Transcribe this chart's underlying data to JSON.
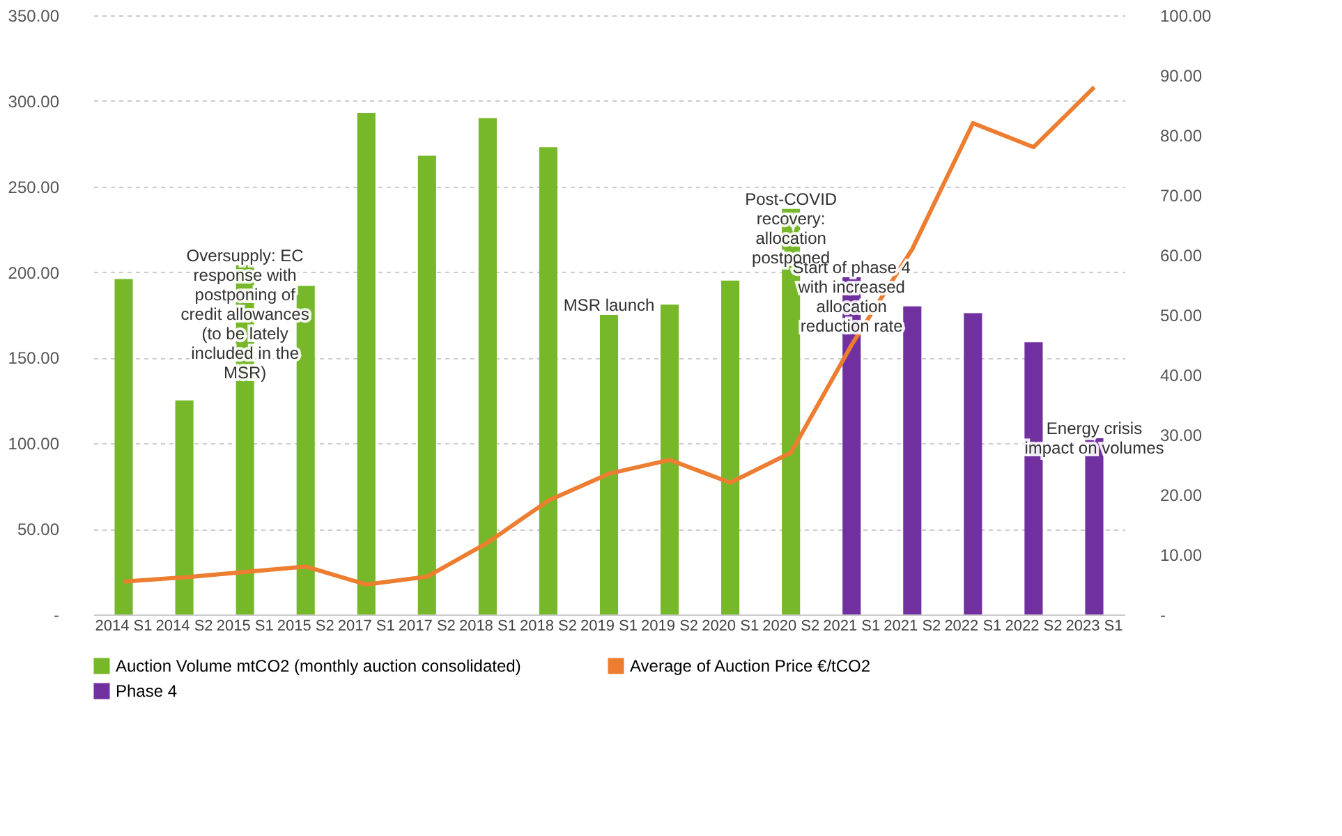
{
  "chart_data": {
    "type": "bar",
    "categories": [
      "2014 S1",
      "2014 S2",
      "2015 S1",
      "2015 S2",
      "2017 S1",
      "2017 S2",
      "2018 S1",
      "2018 S2",
      "2019 S1",
      "2019 S2",
      "2020 S1",
      "2020 S2",
      "2021 S1",
      "2021 S2",
      "2022 S1",
      "2022 S2",
      "2023 S1"
    ],
    "series": [
      {
        "name": "Auction Volume mtCO2 (monthly auction consolidated)",
        "color": "#77b82a",
        "values": [
          196,
          125,
          204,
          192,
          293,
          268,
          290,
          273,
          175,
          181,
          195,
          237,
          null,
          null,
          null,
          null,
          null
        ]
      },
      {
        "name": "Average of Auction Price €/tCO2",
        "color": "#ed7d31",
        "type": "line",
        "axis": "y2",
        "values": [
          5.5,
          6.2,
          7.1,
          8,
          5,
          6.3,
          12,
          19,
          23.5,
          25.8,
          22,
          27,
          45,
          61,
          82,
          78,
          88
        ]
      },
      {
        "name": "Phase 4",
        "color": "#7030a0",
        "values": [
          null,
          null,
          null,
          null,
          null,
          null,
          null,
          null,
          null,
          null,
          null,
          null,
          197,
          180,
          176,
          159,
          103
        ]
      }
    ],
    "ylim": [
      0,
      350
    ],
    "yticks": [
      {
        "value": 0,
        "label": "-"
      },
      {
        "value": 50,
        "label": "50.00"
      },
      {
        "value": 100,
        "label": "100.00"
      },
      {
        "value": 150,
        "label": "150.00"
      },
      {
        "value": 200,
        "label": "200.00"
      },
      {
        "value": 250,
        "label": "250.00"
      },
      {
        "value": 300,
        "label": "300.00"
      },
      {
        "value": 350,
        "label": "350.00"
      }
    ],
    "y2lim": [
      0,
      100
    ],
    "y2ticks": [
      {
        "value": 0,
        "label": "-"
      },
      {
        "value": 10,
        "label": "10.00"
      },
      {
        "value": 20,
        "label": "20.00"
      },
      {
        "value": 30,
        "label": "30.00"
      },
      {
        "value": 40,
        "label": "40.00"
      },
      {
        "value": 50,
        "label": "50.00"
      },
      {
        "value": 60,
        "label": "60.00"
      },
      {
        "value": 70,
        "label": "70.00"
      },
      {
        "value": 80,
        "label": "80.00"
      },
      {
        "value": 90,
        "label": "90.00"
      },
      {
        "value": 100,
        "label": "100.00"
      }
    ],
    "grid": "y",
    "legend": "bottom",
    "annotations": [
      {
        "text": "Oversupply: EC response with postponing of credit allowances (to be lately included in the MSR)",
        "x": "2015 S1",
        "y": 204
      },
      {
        "text": "MSR launch",
        "x": "2019 S1",
        "y": 175
      },
      {
        "text": "Post-COVID recovery: allocation postponed",
        "x": "2020 S2",
        "y": 237
      },
      {
        "text": "Start of phase 4 with increased allocation reduction rate",
        "x": "2021 S1",
        "y": 197
      },
      {
        "text": "Energy crisis impact on volumes",
        "x": "2023 S1",
        "y": 103
      }
    ]
  }
}
